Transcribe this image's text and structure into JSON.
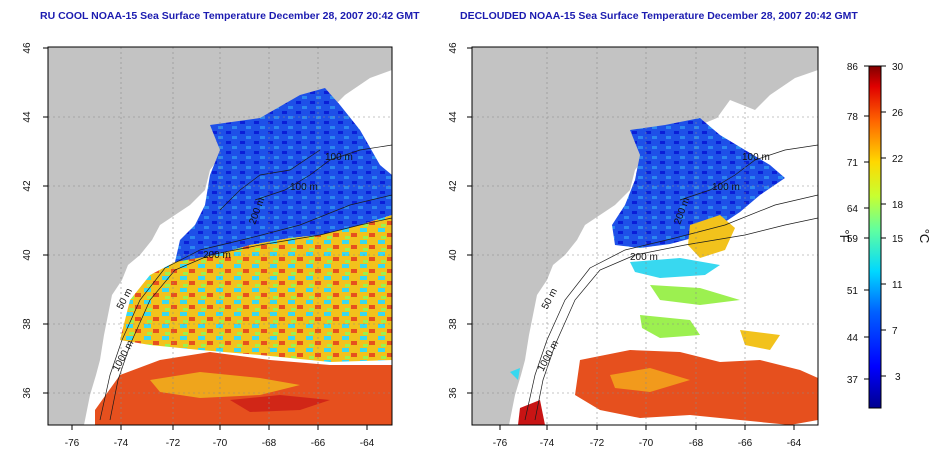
{
  "panels": [
    {
      "id": "left",
      "title": "RU COOL NOAA-15 Sea Surface Temperature December 28, 2007 20:42 GMT",
      "xticks": [
        "-76",
        "-74",
        "-72",
        "-70",
        "-68",
        "-66",
        "-64"
      ],
      "yticks": [
        "36",
        "38",
        "40",
        "42",
        "44",
        "46"
      ],
      "contour_labels": [
        "100 m",
        "100 m",
        "200 m",
        "50 m",
        "1000 m",
        "200 m"
      ]
    },
    {
      "id": "right",
      "title": "DECLOUDED NOAA-15 Sea Surface Temperature December 28, 2007 20:42 GMT",
      "xticks": [
        "-76",
        "-74",
        "-72",
        "-70",
        "-68",
        "-66",
        "-64"
      ],
      "yticks": [
        "36",
        "38",
        "40",
        "42",
        "44",
        "46"
      ],
      "contour_labels": [
        "100 m",
        "100 m",
        "200 m",
        "50 m",
        "1000 m",
        "200 m"
      ]
    }
  ],
  "map_extent": {
    "lon": [
      -77,
      -63
    ],
    "lat": [
      35,
      46
    ]
  },
  "colorbar": {
    "fahrenheit_ticks": [
      "86",
      "78",
      "71",
      "64",
      "59",
      "51",
      "44",
      "37"
    ],
    "celsius_ticks": [
      "30",
      "26",
      "22",
      "18",
      "15",
      "11",
      "7",
      "3"
    ],
    "celsius_range": [
      0,
      30
    ],
    "fahrenheit_unit": "°F",
    "celsius_unit": "°C"
  },
  "colors": {
    "land": "#c3c3c3",
    "title": "#1b1bb0",
    "cold": "#0a1ed8",
    "warm": "#e6501e"
  }
}
